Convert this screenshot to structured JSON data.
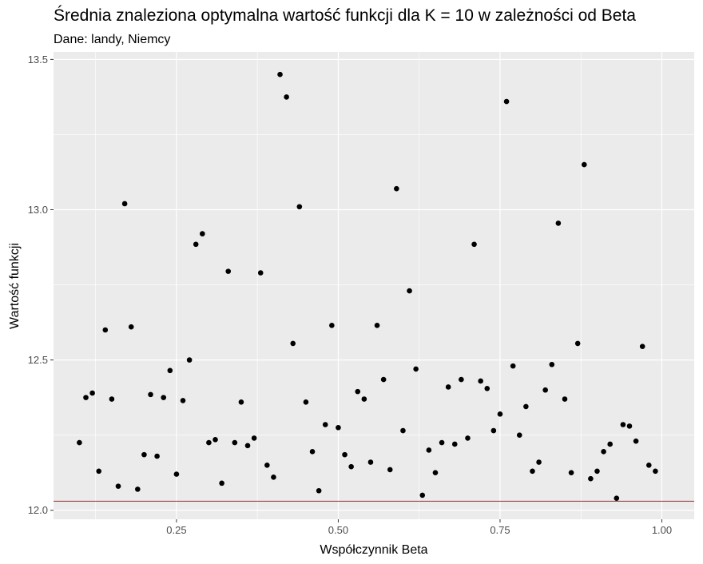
{
  "chart_data": {
    "type": "scatter",
    "title": "Średnia znaleziona optymalna wartość funkcji dla K = 10 w zależności od Beta",
    "subtitle": "Dane: landy, Niemcy",
    "xlabel": "Współczynnik Beta",
    "ylabel": "Wartość funkcji",
    "xlim": [
      0.06,
      1.05
    ],
    "ylim": [
      11.97,
      13.525
    ],
    "x_ticks": [
      0.25,
      0.5,
      0.75,
      1.0
    ],
    "x_tick_labels": [
      "0.25",
      "0.50",
      "0.75",
      "1.00"
    ],
    "y_ticks": [
      12.0,
      12.5,
      13.0,
      13.5
    ],
    "y_tick_labels": [
      "12.0",
      "12.5",
      "13.0",
      "13.5"
    ],
    "grid": true,
    "reference_line": {
      "y": 12.03,
      "color": "#ff0000"
    },
    "colors": {
      "panel": "#ebebeb",
      "grid": "#ffffff",
      "points": "#000000",
      "tick_text": "#4d4d4d"
    },
    "points": [
      {
        "x": 0.1,
        "y": 12.225
      },
      {
        "x": 0.11,
        "y": 12.375
      },
      {
        "x": 0.12,
        "y": 12.39
      },
      {
        "x": 0.13,
        "y": 12.13
      },
      {
        "x": 0.14,
        "y": 12.6
      },
      {
        "x": 0.15,
        "y": 12.37
      },
      {
        "x": 0.16,
        "y": 12.08
      },
      {
        "x": 0.17,
        "y": 13.02
      },
      {
        "x": 0.18,
        "y": 12.61
      },
      {
        "x": 0.19,
        "y": 12.07
      },
      {
        "x": 0.2,
        "y": 12.185
      },
      {
        "x": 0.21,
        "y": 12.385
      },
      {
        "x": 0.22,
        "y": 12.18
      },
      {
        "x": 0.23,
        "y": 12.375
      },
      {
        "x": 0.24,
        "y": 12.465
      },
      {
        "x": 0.25,
        "y": 12.12
      },
      {
        "x": 0.26,
        "y": 12.365
      },
      {
        "x": 0.27,
        "y": 12.5
      },
      {
        "x": 0.28,
        "y": 12.885
      },
      {
        "x": 0.29,
        "y": 12.92
      },
      {
        "x": 0.3,
        "y": 12.225
      },
      {
        "x": 0.31,
        "y": 12.235
      },
      {
        "x": 0.32,
        "y": 12.09
      },
      {
        "x": 0.33,
        "y": 12.795
      },
      {
        "x": 0.34,
        "y": 12.225
      },
      {
        "x": 0.35,
        "y": 12.36
      },
      {
        "x": 0.36,
        "y": 12.215
      },
      {
        "x": 0.37,
        "y": 12.24
      },
      {
        "x": 0.38,
        "y": 12.79
      },
      {
        "x": 0.39,
        "y": 12.15
      },
      {
        "x": 0.4,
        "y": 12.11
      },
      {
        "x": 0.41,
        "y": 13.45
      },
      {
        "x": 0.42,
        "y": 13.375
      },
      {
        "x": 0.43,
        "y": 12.555
      },
      {
        "x": 0.44,
        "y": 13.01
      },
      {
        "x": 0.45,
        "y": 12.36
      },
      {
        "x": 0.46,
        "y": 12.195
      },
      {
        "x": 0.47,
        "y": 12.065
      },
      {
        "x": 0.48,
        "y": 12.285
      },
      {
        "x": 0.49,
        "y": 12.615
      },
      {
        "x": 0.5,
        "y": 12.275
      },
      {
        "x": 0.51,
        "y": 12.185
      },
      {
        "x": 0.52,
        "y": 12.145
      },
      {
        "x": 0.53,
        "y": 12.395
      },
      {
        "x": 0.54,
        "y": 12.37
      },
      {
        "x": 0.55,
        "y": 12.16
      },
      {
        "x": 0.56,
        "y": 12.615
      },
      {
        "x": 0.57,
        "y": 12.435
      },
      {
        "x": 0.58,
        "y": 12.135
      },
      {
        "x": 0.59,
        "y": 13.07
      },
      {
        "x": 0.6,
        "y": 12.265
      },
      {
        "x": 0.61,
        "y": 12.73
      },
      {
        "x": 0.62,
        "y": 12.47
      },
      {
        "x": 0.63,
        "y": 12.05
      },
      {
        "x": 0.64,
        "y": 12.2
      },
      {
        "x": 0.65,
        "y": 12.125
      },
      {
        "x": 0.66,
        "y": 12.225
      },
      {
        "x": 0.67,
        "y": 12.41
      },
      {
        "x": 0.68,
        "y": 12.22
      },
      {
        "x": 0.69,
        "y": 12.435
      },
      {
        "x": 0.7,
        "y": 12.24
      },
      {
        "x": 0.71,
        "y": 12.885
      },
      {
        "x": 0.72,
        "y": 12.43
      },
      {
        "x": 0.73,
        "y": 12.405
      },
      {
        "x": 0.74,
        "y": 12.265
      },
      {
        "x": 0.75,
        "y": 12.32
      },
      {
        "x": 0.76,
        "y": 13.36
      },
      {
        "x": 0.77,
        "y": 12.48
      },
      {
        "x": 0.78,
        "y": 12.25
      },
      {
        "x": 0.79,
        "y": 12.345
      },
      {
        "x": 0.8,
        "y": 12.13
      },
      {
        "x": 0.81,
        "y": 12.16
      },
      {
        "x": 0.82,
        "y": 12.4
      },
      {
        "x": 0.83,
        "y": 12.485
      },
      {
        "x": 0.84,
        "y": 12.955
      },
      {
        "x": 0.85,
        "y": 12.37
      },
      {
        "x": 0.86,
        "y": 12.125
      },
      {
        "x": 0.87,
        "y": 12.555
      },
      {
        "x": 0.88,
        "y": 13.15
      },
      {
        "x": 0.89,
        "y": 12.105
      },
      {
        "x": 0.9,
        "y": 12.13
      },
      {
        "x": 0.91,
        "y": 12.195
      },
      {
        "x": 0.92,
        "y": 12.22
      },
      {
        "x": 0.93,
        "y": 12.04
      },
      {
        "x": 0.94,
        "y": 12.285
      },
      {
        "x": 0.95,
        "y": 12.28
      },
      {
        "x": 0.96,
        "y": 12.23
      },
      {
        "x": 0.97,
        "y": 12.545
      },
      {
        "x": 0.98,
        "y": 12.15
      },
      {
        "x": 0.99,
        "y": 12.13
      }
    ]
  }
}
